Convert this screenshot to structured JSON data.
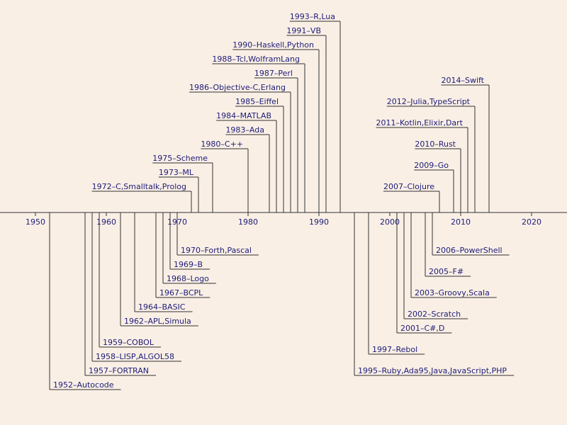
{
  "chart_data": {
    "type": "timeline",
    "xlim": [
      1945,
      2025
    ],
    "xticks": [
      1950,
      1960,
      1970,
      1980,
      1990,
      2000,
      2010,
      2020
    ],
    "years": [
      1952,
      1957,
      1958,
      1959,
      1962,
      1964,
      1967,
      1968,
      1969,
      1970,
      1972,
      1973,
      1975,
      1980,
      1983,
      1984,
      1985,
      1986,
      1987,
      1988,
      1990,
      1991,
      1993,
      1995,
      1997,
      2001,
      2002,
      2003,
      2005,
      2006,
      2007,
      2009,
      2010,
      2011,
      2012,
      2014
    ],
    "labels": [
      "1952–Autocode",
      "1957–FORTRAN",
      "1958–LISP,ALGOL58",
      "1959–COBOL",
      "1962–APL,Simula",
      "1964–BASIC",
      "1967–BCPL",
      "1968–Logo",
      "1969–B",
      "1970–Forth,Pascal",
      "1972–C,Smalltalk,Prolog",
      "1973–ML",
      "1975–Scheme",
      "1980–C++",
      "1983–Ada",
      "1984–MATLAB",
      "1985–Eiffel",
      "1986–Objective-C,Erlang",
      "1987–Perl",
      "1988–Tcl,WolframLang",
      "1990–Haskell,Python",
      "1991–VB",
      "1993–R,Lua",
      "1995–Ruby,Ada95,Java,JavaScript,PHP",
      "1997–Rebol",
      "2001–C#,D",
      "2002–Scratch",
      "2003–Groovy,Scala",
      "2005–F#",
      "2006–PowerShell",
      "2007–Clojure",
      "2009–Go",
      "2010–Rust",
      "2011–Kotlin,Elixir,Dart",
      "2012–Julia,TypeScript",
      "2014–Swift"
    ]
  }
}
